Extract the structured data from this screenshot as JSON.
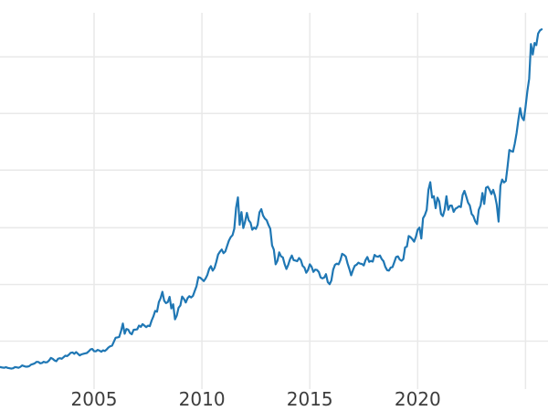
{
  "chart_data": {
    "type": "line",
    "title": "",
    "xlabel": "",
    "ylabel": "",
    "legend": null,
    "grid": true,
    "background_color": "#ffffff",
    "line_color": "#1f77b4",
    "grid_color": "#e9e9e9",
    "tick_label_color": "#3d3d3d",
    "x_domain": [
      2000.64,
      2026.04
    ],
    "y_domain": [
      115,
      3650
    ],
    "y_gridlines": [
      520,
      1060,
      1600,
      2150,
      2690,
      3230
    ],
    "y_tick_labels_visible": false,
    "x_ticks": [
      {
        "year": 2005,
        "label": "2005"
      },
      {
        "year": 2010,
        "label": "2010"
      },
      {
        "year": 2015,
        "label": "2015"
      },
      {
        "year": 2020,
        "label": "2020"
      },
      {
        "year": 2025,
        "label": ""
      }
    ],
    "series": [
      {
        "name": "price-line",
        "x_start_year": 2000.5833,
        "x_step_years": 0.083333,
        "values": [
          274,
          272,
          268,
          266,
          272,
          265,
          261,
          258,
          261,
          273,
          270,
          266,
          274,
          288,
          282,
          276,
          277,
          282,
          296,
          301,
          308,
          322,
          321,
          308,
          312,
          323,
          317,
          320,
          336,
          360,
          351,
          336,
          328,
          352,
          357,
          352,
          366,
          381,
          377,
          390,
          408,
          412,
          399,
          415,
          400,
          384,
          394,
          399,
          403,
          407,
          422,
          441,
          445,
          424,
          423,
          436,
          429,
          419,
          432,
          426,
          441,
          459,
          471,
          477,
          513,
          552,
          556,
          560,
          615,
          688,
          590,
          636,
          630,
          597,
          585,
          628,
          630,
          632,
          668,
          656,
          682,
          668,
          653,
          667,
          663,
          716,
          757,
          808,
          800,
          892,
          928,
          990,
          905,
          882,
          892,
          942,
          832,
          872,
          728,
          762,
          838,
          860,
          945,
          922,
          888,
          930,
          948,
          936,
          952,
          998,
          1045,
          1130,
          1125,
          1110,
          1092,
          1115,
          1150,
          1208,
          1235,
          1192,
          1218,
          1275,
          1345,
          1372,
          1393,
          1358,
          1375,
          1428,
          1478,
          1512,
          1530,
          1590,
          1790,
          1890,
          1628,
          1750,
          1598,
          1658,
          1742,
          1672,
          1648,
          1582,
          1602,
          1590,
          1628,
          1748,
          1778,
          1718,
          1688,
          1672,
          1628,
          1592,
          1432,
          1392,
          1252,
          1286,
          1366,
          1328,
          1318,
          1252,
          1208,
          1248,
          1302,
          1336,
          1292,
          1288,
          1282,
          1312,
          1292,
          1238,
          1222,
          1172,
          1198,
          1252,
          1228,
          1180,
          1202,
          1198,
          1178,
          1128,
          1118,
          1126,
          1158,
          1082,
          1062,
          1098,
          1202,
          1248,
          1258,
          1252,
          1292,
          1352,
          1342,
          1326,
          1262,
          1208,
          1148,
          1198,
          1238,
          1248,
          1268,
          1258,
          1256,
          1242,
          1292,
          1322,
          1276,
          1284,
          1278,
          1342,
          1328,
          1324,
          1336,
          1302,
          1282,
          1228,
          1196,
          1192,
          1222,
          1226,
          1272,
          1322,
          1328,
          1298,
          1286,
          1302,
          1412,
          1422,
          1522,
          1512,
          1492,
          1468,
          1516,
          1582,
          1602,
          1498,
          1692,
          1722,
          1772,
          1962,
          2035,
          1888,
          1902,
          1788,
          1888,
          1852,
          1732,
          1712,
          1772,
          1902,
          1772,
          1812,
          1812,
          1752,
          1782,
          1792,
          1806,
          1798,
          1912,
          1952,
          1898,
          1842,
          1812,
          1732,
          1712,
          1662,
          1636,
          1772,
          1814,
          1932,
          1828,
          1982,
          1992,
          1962,
          1922,
          1962,
          1905,
          1820,
          1660,
          2000,
          2060,
          2032,
          2046,
          2182,
          2342,
          2332,
          2326,
          2402,
          2502,
          2632,
          2742,
          2652,
          2626,
          2752,
          2902,
          3022,
          3352,
          3252,
          3362,
          3342,
          3452,
          3482,
          3492
        ]
      }
    ]
  }
}
